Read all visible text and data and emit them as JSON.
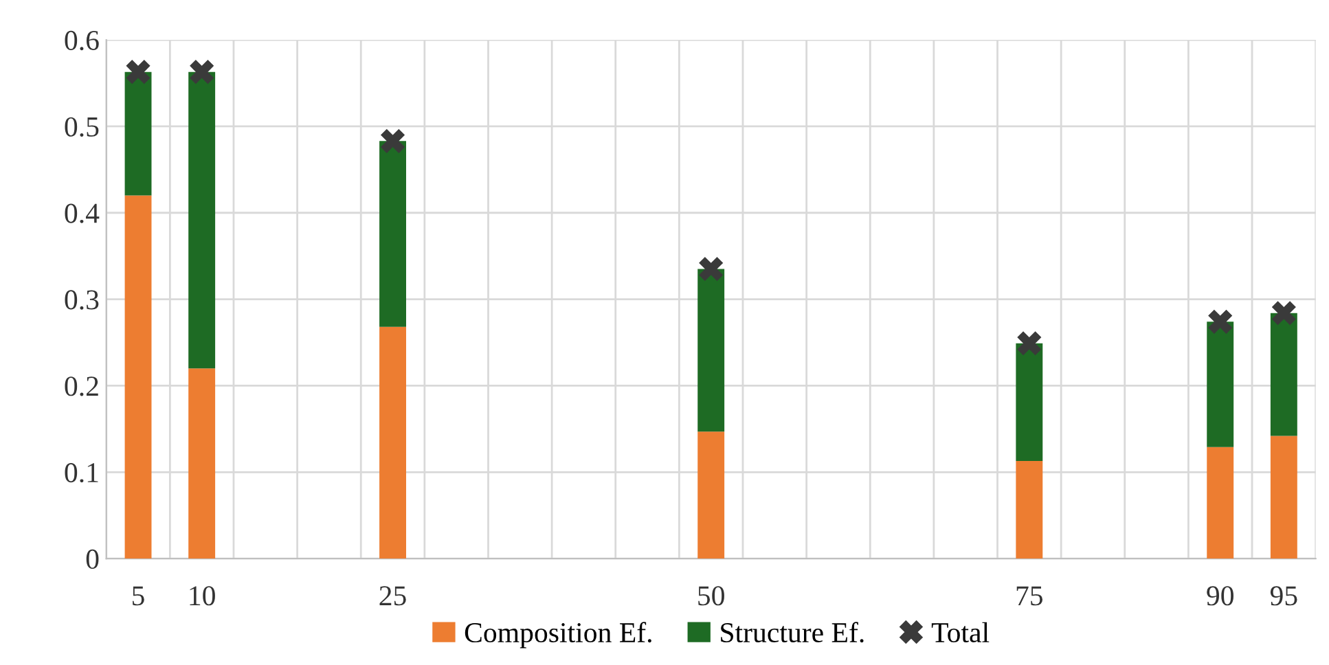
{
  "chart_data": {
    "type": "bar",
    "stacked": true,
    "x": [
      5,
      10,
      25,
      50,
      75,
      90,
      95
    ],
    "series": [
      {
        "name": "Composition Ef.",
        "color": "#ed7d31",
        "values": [
          0.42,
          0.22,
          0.268,
          0.147,
          0.113,
          0.129,
          0.142
        ]
      },
      {
        "name": "Structure Ef.",
        "color": "#1e6b24",
        "values": [
          0.143,
          0.343,
          0.215,
          0.188,
          0.136,
          0.145,
          0.142
        ]
      },
      {
        "name": "Total",
        "type": "scatter",
        "color": "#3a3a3a",
        "marker": "cross",
        "values": [
          0.563,
          0.563,
          0.483,
          0.335,
          0.249,
          0.274,
          0.284
        ]
      }
    ],
    "xlim": [
      2.5,
      97.5
    ],
    "xticks": [
      5,
      10,
      25,
      50,
      75,
      90,
      95,
      {
        "value": 2.5,
        "label": null
      },
      {
        "value": 7.5,
        "label": null
      },
      {
        "value": 12.5,
        "label": null
      },
      {
        "value": 17.5,
        "label": null
      },
      {
        "value": 22.5,
        "label": null
      },
      {
        "value": 27.5,
        "label": null
      },
      {
        "value": 32.5,
        "label": null
      },
      {
        "value": 37.5,
        "label": null
      },
      {
        "value": 42.5,
        "label": null
      },
      {
        "value": 47.5,
        "label": null
      },
      {
        "value": 52.5,
        "label": null
      },
      {
        "value": 57.5,
        "label": null
      },
      {
        "value": 62.5,
        "label": null
      },
      {
        "value": 67.5,
        "label": null
      },
      {
        "value": 72.5,
        "label": null
      },
      {
        "value": 77.5,
        "label": null
      },
      {
        "value": 82.5,
        "label": null
      },
      {
        "value": 87.5,
        "label": null
      },
      {
        "value": 92.5,
        "label": null
      },
      {
        "value": 97.5,
        "label": null
      }
    ],
    "ylim": [
      0,
      0.6
    ],
    "yticks": [
      0,
      0.1,
      0.2,
      0.3,
      0.4,
      0.5,
      0.6
    ],
    "grid": true,
    "legend": "bottom"
  }
}
